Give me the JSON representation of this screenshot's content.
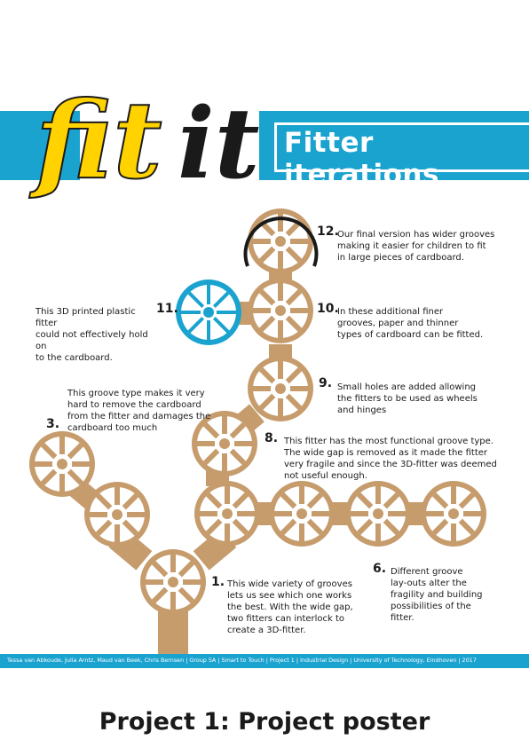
{
  "poster": {
    "logo_text": "fitit",
    "title": "Fitter iterations",
    "colors": {
      "accent": "#1aa3cf",
      "cardboard": "#c69c6d",
      "yellow": "#ffd200",
      "ink": "#1a1a1a"
    },
    "notes": [
      {
        "id": "n12",
        "number": "12.",
        "lines": [
          "Our final version has wider grooves",
          "making it easier for children to fit",
          "in large pieces of cardboard."
        ]
      },
      {
        "id": "n11",
        "number": "11.",
        "lines": [
          "This 3D printed plastic fitter",
          "could not effectively hold on",
          "to the cardboard."
        ]
      },
      {
        "id": "n10",
        "number": "10.",
        "lines": [
          "In these additional finer",
          "grooves, paper and thinner",
          "types of cardboard can be fitted."
        ]
      },
      {
        "id": "n9",
        "number": "9.",
        "lines": [
          "Small holes are added allowing",
          "the fitters to be used as wheels",
          "and hinges"
        ]
      },
      {
        "id": "n3",
        "number": "3.",
        "lines": [
          "This groove type makes it very",
          "hard to remove the cardboard",
          "from the fitter and damages the",
          "cardboard too much"
        ]
      },
      {
        "id": "n8",
        "number": "8.",
        "lines": [
          "This fitter has the most functional groove type.",
          "The wide gap is removed as it made the fitter",
          "very fragile and since the 3D-fitter was deemed",
          "not useful enough."
        ]
      },
      {
        "id": "n6",
        "number": "6.",
        "lines": [
          "Different groove",
          "lay-outs alter the",
          "fragility and building",
          "possibilities of the",
          "fitter."
        ]
      },
      {
        "id": "n1",
        "number": "1.",
        "lines": [
          "This wide variety of grooves",
          "lets us see which one works",
          "the best. With the wide gap,",
          "two fitters can interlock to",
          "create a 3D-fitter."
        ]
      }
    ],
    "footer": "Tessa van Abkoude, Julia Arntz, Maud van Beek, Chris Bernsen | Group 5A | Smart to Touch | Project 1 | Industrial Design | University of Technology, Eindhoven | 2017"
  },
  "caption": "Project 1: Project poster"
}
